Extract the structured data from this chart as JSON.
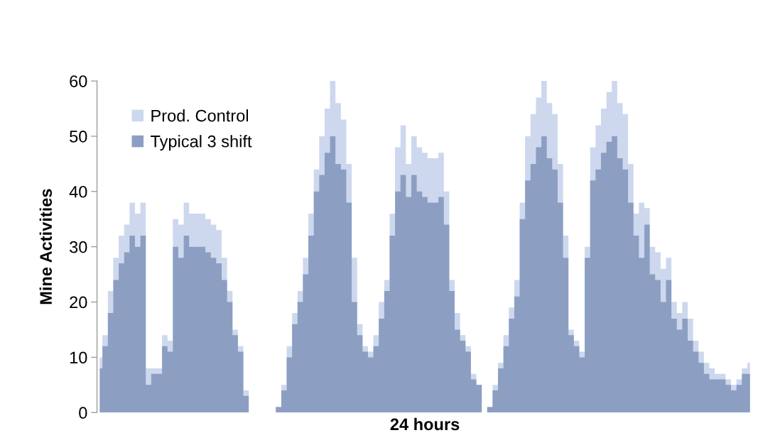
{
  "chart_data": {
    "type": "area",
    "xlabel": "24 hours",
    "ylabel": "Mine Activities",
    "categories": [
      null,
      null,
      null,
      null,
      null,
      null,
      null,
      null,
      null,
      null,
      null,
      null,
      null,
      null,
      null,
      null,
      null,
      null,
      null,
      null,
      null,
      null,
      null,
      null,
      null,
      null,
      null,
      null,
      null,
      null,
      null,
      null,
      null,
      null,
      null,
      null,
      null,
      null,
      null,
      null,
      null,
      null,
      null,
      null,
      null,
      null,
      null,
      null,
      null,
      null,
      null,
      null,
      null,
      null,
      null,
      null,
      null,
      null,
      null,
      null,
      null,
      null,
      null,
      null,
      null,
      null,
      null,
      null,
      null,
      null,
      null,
      null,
      null,
      null,
      null,
      null,
      null,
      null,
      null,
      null,
      null,
      null,
      null,
      null,
      null,
      null,
      null,
      null,
      null,
      null,
      null,
      null,
      null,
      null,
      null,
      null,
      null,
      null,
      null,
      null,
      null,
      null,
      null,
      null,
      null,
      null,
      null,
      null,
      null,
      null,
      null,
      null,
      null,
      null,
      null,
      null,
      null,
      null,
      null,
      null,
      null
    ],
    "series": [
      {
        "name": "Prod. Control",
        "color": "#cdd8ee",
        "values": [
          10,
          14,
          22,
          28,
          32,
          34,
          38,
          36,
          38,
          8,
          8,
          8,
          14,
          13,
          35,
          34,
          38,
          36,
          36,
          36,
          35,
          34,
          33,
          28,
          22,
          15,
          12,
          4,
          0,
          0,
          0,
          0,
          0,
          1,
          5,
          12,
          18,
          22,
          28,
          36,
          44,
          50,
          55,
          60,
          56,
          53,
          45,
          28,
          16,
          12,
          11,
          14,
          20,
          24,
          36,
          48,
          52,
          45,
          50,
          48,
          47,
          46,
          46,
          47,
          40,
          24,
          18,
          14,
          12,
          7,
          5,
          0,
          1,
          5,
          9,
          14,
          19,
          24,
          38,
          50,
          54,
          57,
          60,
          56,
          54,
          45,
          32,
          15,
          13,
          11,
          30,
          48,
          52,
          55,
          58,
          60,
          56,
          54,
          45,
          36,
          38,
          37,
          30,
          29,
          26,
          28,
          20,
          18,
          20,
          17,
          13,
          11,
          9,
          8,
          7,
          7,
          6,
          5,
          6,
          8,
          9
        ]
      },
      {
        "name": "Typical 3 shift",
        "color": "#8c9fc2",
        "values": [
          8,
          12,
          18,
          24,
          27,
          29,
          32,
          30,
          32,
          5,
          7,
          7,
          12,
          11,
          30,
          28,
          32,
          30,
          30,
          30,
          29,
          28,
          27,
          24,
          20,
          14,
          11,
          3,
          0,
          0,
          0,
          0,
          0,
          1,
          4,
          10,
          16,
          20,
          25,
          32,
          40,
          43,
          47,
          50,
          45,
          44,
          38,
          20,
          14,
          11,
          10,
          12,
          17,
          22,
          32,
          40,
          43,
          39,
          43,
          40,
          39,
          38,
          38,
          39,
          34,
          22,
          15,
          13,
          11,
          6,
          5,
          0,
          1,
          4,
          8,
          12,
          17,
          21,
          35,
          42,
          45,
          48,
          50,
          46,
          44,
          38,
          28,
          14,
          12,
          10,
          28,
          42,
          44,
          47,
          49,
          50,
          46,
          44,
          38,
          32,
          28,
          34,
          25,
          24,
          20,
          24,
          17,
          15,
          17,
          13,
          11,
          9,
          7,
          6,
          6,
          6,
          5,
          4,
          5,
          7,
          7
        ]
      }
    ],
    "ylim": [
      0,
      60
    ],
    "yticks": [
      0,
      10,
      20,
      30,
      40,
      50,
      60
    ],
    "grid": false,
    "legend": "top left"
  }
}
